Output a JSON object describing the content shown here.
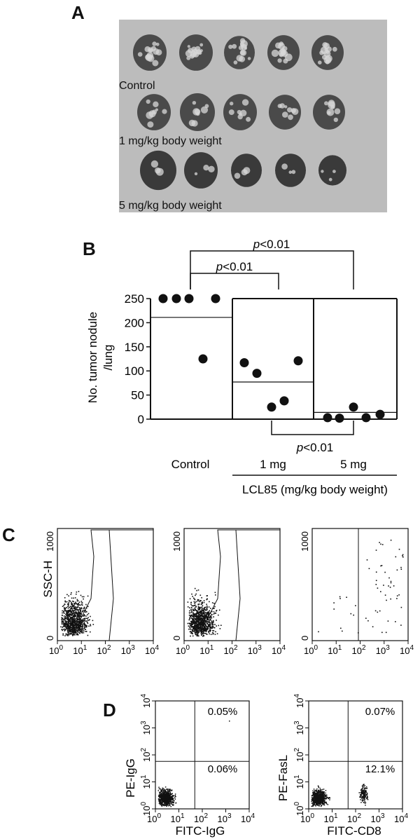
{
  "panel_a": {
    "letter": "A",
    "labels": [
      "Control",
      "1 mg/kg body weight",
      "5 mg/kg body weight"
    ]
  },
  "chart_data": [
    {
      "type": "scatter",
      "panel": "B",
      "ylabel_line1": "No. tumor nodule",
      "ylabel_line2": "/lung",
      "ylim": [
        0,
        250
      ],
      "yticks": [
        "0",
        "50",
        "100",
        "150",
        "200",
        "250"
      ],
      "group_labels": [
        "Control",
        "1 mg",
        "5 mg"
      ],
      "xlabel": "LCL85 (mg/kg body weight)",
      "series": [
        {
          "group": "Control",
          "values": [
            250,
            250,
            250,
            250,
            125
          ],
          "mean": 211
        },
        {
          "group": "1 mg",
          "values": [
            117,
            95,
            25,
            38,
            121
          ],
          "mean": 77
        },
        {
          "group": "5 mg",
          "values": [
            3,
            2,
            25,
            3,
            10
          ],
          "mean": 14
        }
      ],
      "comparisons": [
        {
          "label_p": "p",
          "label_rest": "<0.01",
          "from": "Control",
          "to": "1 mg"
        },
        {
          "label_p": "p",
          "label_rest": "<0.01",
          "from": "Control",
          "to": "5 mg"
        },
        {
          "label_p": "p",
          "label_rest": "<0.01",
          "from": "1 mg",
          "to": "5 mg"
        }
      ]
    },
    {
      "type": "scatter",
      "panel": "C",
      "ylabel": "SSC-H",
      "yticks": [
        "0",
        "1000"
      ],
      "xticks": [
        "10^0",
        "10^1",
        "10^2",
        "10^3",
        "10^4"
      ],
      "plots": [
        "plot-1",
        "plot-2",
        "plot-3"
      ]
    },
    {
      "type": "scatter",
      "panel": "D",
      "plots": [
        {
          "ylabel": "PE-IgG",
          "xlabel": "FITC-IgG",
          "upper_right_pct": "0.05%",
          "lower_right_pct": "0.06%"
        },
        {
          "ylabel": "PE-FasL",
          "xlabel": "FITC-CD8",
          "upper_right_pct": "0.07%",
          "lower_right_pct": "12.1%"
        }
      ],
      "yticks": [
        "10^0",
        "10^1",
        "10^2",
        "10^3",
        "10^4"
      ],
      "xticks": [
        "10^0",
        "10^1",
        "10^2",
        "10^3",
        "10^4"
      ]
    }
  ],
  "letters": {
    "b": "B",
    "c": "C",
    "d": "D"
  }
}
